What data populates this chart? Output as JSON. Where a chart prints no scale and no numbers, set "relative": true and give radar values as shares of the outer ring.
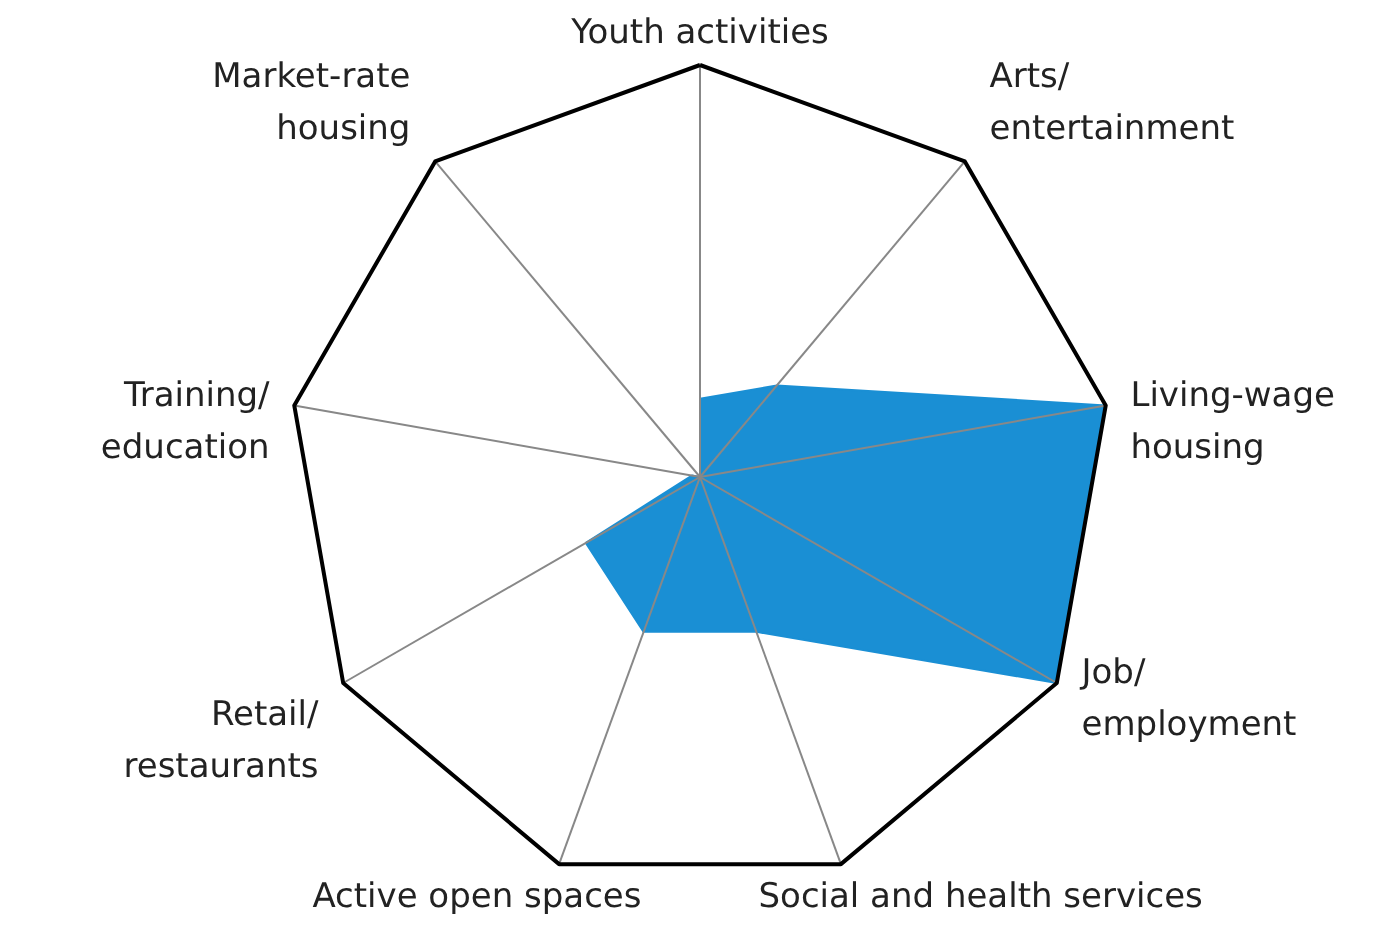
{
  "chart_data": {
    "type": "radar",
    "relative": true,
    "grid": true,
    "categories": [
      "Youth activities",
      "Arts/\nentertainment",
      "Living-wage\nhousing",
      "Job/\nemployment",
      "Social and health services",
      "Active open spaces",
      "Retail/\nrestaurants",
      "Training/\neducation",
      "Market-rate\nhousing"
    ],
    "series": [
      {
        "color": "#1a8fd4",
        "values": [
          0.19,
          0.29,
          1.0,
          1.0,
          0.4,
          0.4,
          0.32,
          0.02,
          0
        ]
      }
    ]
  }
}
